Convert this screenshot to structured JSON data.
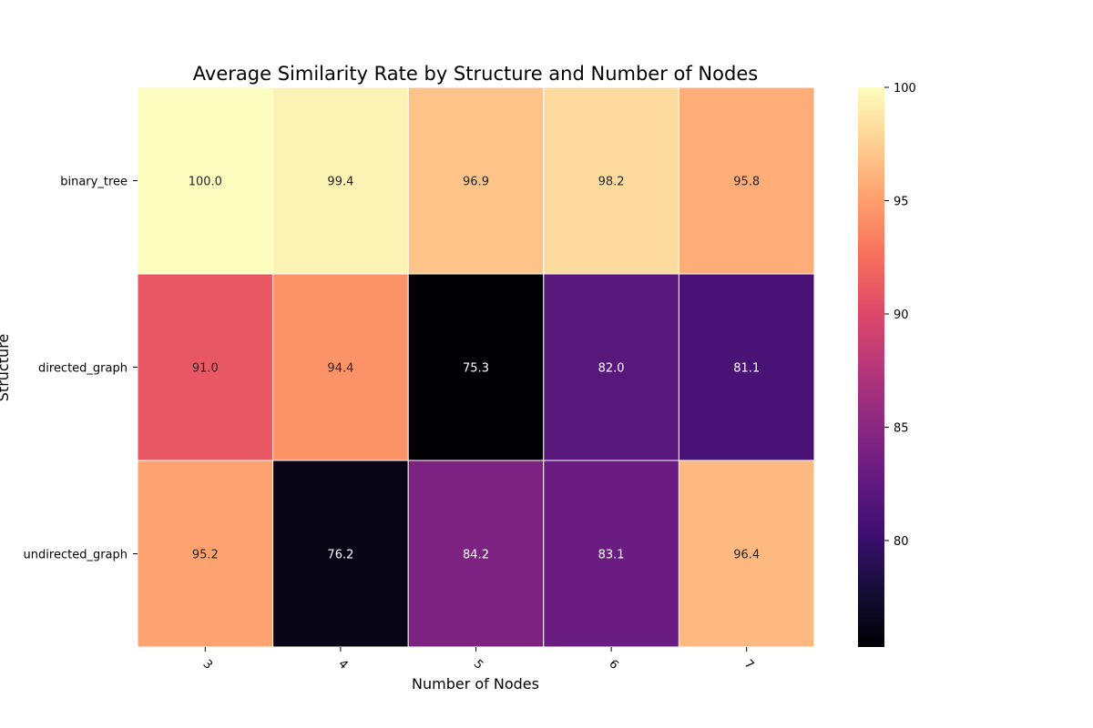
{
  "chart_data": {
    "type": "heatmap",
    "title": "Average Similarity Rate by Structure and Number of Nodes",
    "xlabel": "Number of Nodes",
    "ylabel": "Structure",
    "x_categories": [
      "3",
      "4",
      "5",
      "6",
      "7"
    ],
    "y_categories": [
      "binary_tree",
      "directed_graph",
      "undirected_graph"
    ],
    "values": [
      [
        100.0,
        99.4,
        96.9,
        98.2,
        95.8
      ],
      [
        91.0,
        94.4,
        75.3,
        82.0,
        81.1
      ],
      [
        95.2,
        76.2,
        84.2,
        83.1,
        96.4
      ]
    ],
    "value_format": "0.1f",
    "colormap": "magma",
    "colorbar": {
      "vmin": 75.3,
      "vmax": 100.0,
      "ticks": [
        80,
        85,
        90,
        95,
        100
      ]
    },
    "annotation_colors": {
      "dark_cell_text": "#ffffff",
      "light_cell_text": "#262626"
    }
  }
}
